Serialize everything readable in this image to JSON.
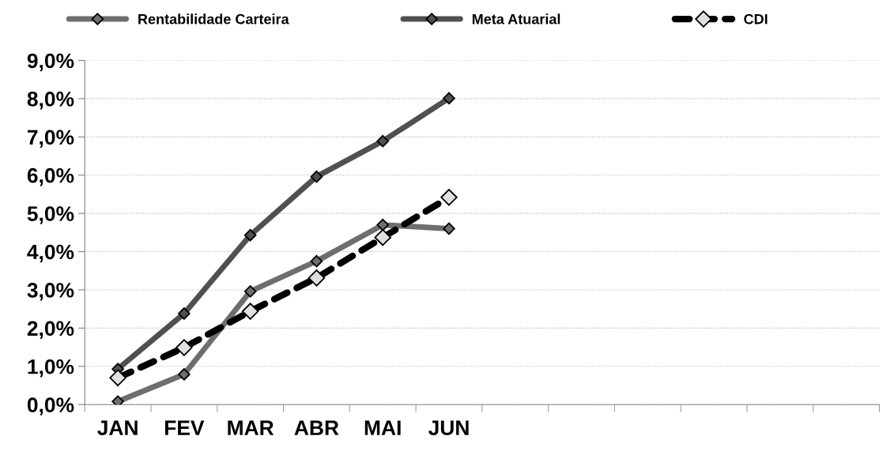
{
  "chart_data": {
    "type": "line",
    "categories": [
      "JAN",
      "FEV",
      "MAR",
      "ABR",
      "MAI",
      "JUN",
      null,
      null,
      null,
      null,
      null,
      null
    ],
    "series": [
      {
        "name": "Rentabilidade Carteira",
        "color": "#6e6e6e",
        "values": [
          0.08,
          0.79,
          2.96,
          3.75,
          4.7,
          4.6,
          null,
          null,
          null,
          null,
          null,
          null
        ]
      },
      {
        "name": "Meta Atuarial",
        "color": "#505050",
        "values": [
          0.93,
          2.38,
          4.43,
          5.96,
          6.89,
          8.01,
          null,
          null,
          null,
          null,
          null,
          null
        ]
      },
      {
        "name": "CDI",
        "color": "#000000",
        "line_style": "dashed",
        "values": [
          0.7,
          1.49,
          2.44,
          3.31,
          4.37,
          5.42,
          null,
          null,
          null,
          null,
          null,
          null
        ]
      }
    ],
    "ylim": [
      0,
      9
    ],
    "yticks": [
      {
        "value": 0,
        "label": "0,0%"
      },
      {
        "value": 1,
        "label": "1,0%"
      },
      {
        "value": 2,
        "label": "2,0%"
      },
      {
        "value": 3,
        "label": "3,0%"
      },
      {
        "value": 4,
        "label": "4,0%"
      },
      {
        "value": 5,
        "label": "5,0%"
      },
      {
        "value": 6,
        "label": "6,0%"
      },
      {
        "value": 7,
        "label": "7,0%"
      },
      {
        "value": 8,
        "label": "8,0%"
      },
      {
        "value": 9,
        "label": "9,0%"
      }
    ],
    "grid": "y",
    "legend": "top",
    "marker": "diamond",
    "line_style": "solid"
  }
}
